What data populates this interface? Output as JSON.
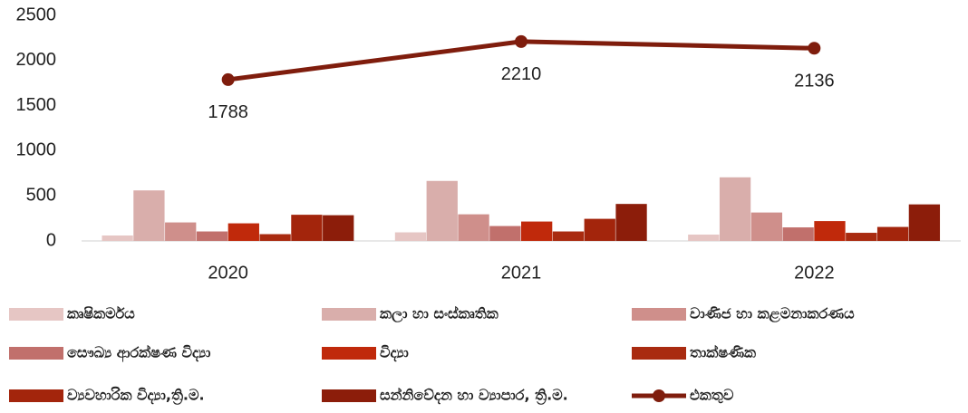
{
  "chart_data": {
    "type": "bar",
    "categories": [
      "2020",
      "2021",
      "2022"
    ],
    "series": [
      {
        "name": "කෘෂිකර්මය",
        "color": "#e6c6c4",
        "values": [
          60,
          95,
          70
        ]
      },
      {
        "name": "කලා හා සංස්කෘතික",
        "color": "#d9aeab",
        "values": [
          560,
          665,
          705
        ]
      },
      {
        "name": "වාණිජ හා කළමනාකරණය",
        "color": "#cf8f8b",
        "values": [
          205,
          295,
          315
        ]
      },
      {
        "name": "සෞඛ්‍ය ආරක්ෂණ විද්‍යා",
        "color": "#c1706c",
        "values": [
          105,
          165,
          150
        ]
      },
      {
        "name": "විද්‍යා",
        "color": "#c0290b",
        "values": [
          195,
          215,
          220
        ]
      },
      {
        "name": "තාක්ෂණික",
        "color": "#a92b10",
        "values": [
          75,
          105,
          90
        ]
      },
      {
        "name": "ව්‍යවහාරික විද්‍යා,ත්‍රි.ම.",
        "color": "#a3250c",
        "values": [
          290,
          245,
          155
        ]
      },
      {
        "name": "සන්නිවේදන හා ව්‍යාපාර, ත්‍රි.ම.",
        "color": "#8c1d0a",
        "values": [
          285,
          410,
          405
        ]
      },
      {
        "name": "එකතුව",
        "type": "line",
        "color": "#7f1d0d",
        "values": [
          1788,
          2210,
          2136
        ]
      }
    ],
    "ylim": [
      0,
      2500
    ],
    "yticks": [
      0,
      500,
      1000,
      1500,
      2000,
      2500
    ],
    "grid": false,
    "legend": "bottom"
  }
}
